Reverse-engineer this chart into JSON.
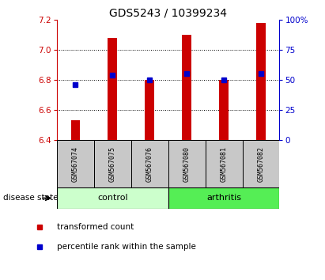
{
  "title": "GDS5243 / 10399234",
  "samples": [
    "GSM567074",
    "GSM567075",
    "GSM567076",
    "GSM567080",
    "GSM567081",
    "GSM567082"
  ],
  "bar_values": [
    6.53,
    7.08,
    6.8,
    7.1,
    6.8,
    7.18
  ],
  "percentile_values": [
    6.77,
    6.83,
    6.8,
    6.84,
    6.8,
    6.84
  ],
  "bar_bottom": 6.4,
  "ylim_left": [
    6.4,
    7.2
  ],
  "ylim_right": [
    0,
    100
  ],
  "yticks_left": [
    6.4,
    6.6,
    6.8,
    7.0,
    7.2
  ],
  "yticks_right": [
    0,
    25,
    50,
    75,
    100
  ],
  "ytick_labels_right": [
    "0",
    "25",
    "50",
    "75",
    "100%"
  ],
  "bar_color": "#cc0000",
  "percentile_color": "#0000cc",
  "control_label": "control",
  "arthritis_label": "arthritis",
  "control_bg": "#ccffcc",
  "arthritis_bg": "#55ee55",
  "disease_label": "disease state",
  "legend_bar": "transformed count",
  "legend_pct": "percentile rank within the sample",
  "bar_width": 0.25,
  "title_fontsize": 10,
  "axis_color_left": "#cc0000",
  "axis_color_right": "#0000cc",
  "sample_bg": "#c8c8c8"
}
